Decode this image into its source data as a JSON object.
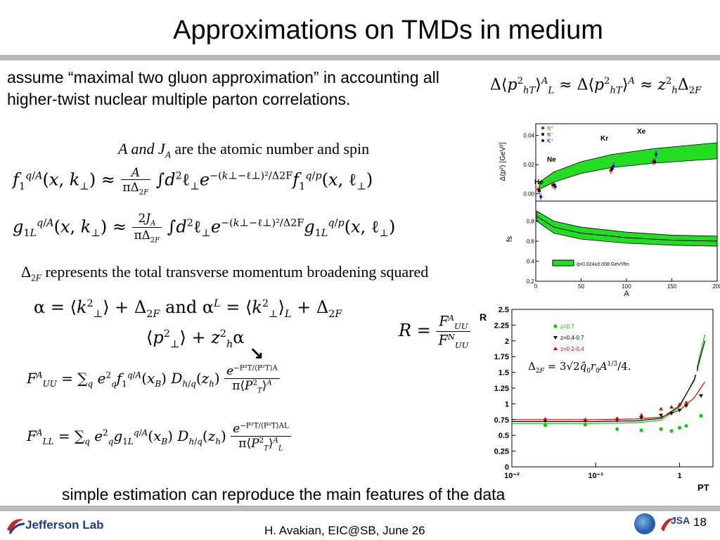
{
  "slide": {
    "title": "Approximations on TMDs in medium",
    "intro": "assume “maximal two gluon approximation” in accounting all higher-twist nuclear multiple parton correlations.",
    "atomic_note": "A and J",
    "atomic_note_sub": "A",
    "atomic_note_rest": " are the atomic number and spin",
    "delta_note_rest": " represents the total transverse momentum broadening squared",
    "and_word": "and",
    "conclusion": "simple estimation  can reproduce the main features of the data",
    "footer": "H. Avakian, EIC@SB,  June 26",
    "page_number": "18",
    "logo_text": "Jefferson Lab",
    "jsa_text": "JSA"
  },
  "equations": {
    "top_right": "Δ⟨p²hT⟩AL ≈ Δ⟨p²hT⟩A ≈ z²h Δ2F",
    "ratio": "R = FAUU / FNUU",
    "delta_formula": "Δ2F = 3√2 q̂0 r0 A1/3/4."
  },
  "chart_data": [
    {
      "type": "scatter",
      "title": "",
      "xlabel": "A",
      "ylabel": "Δ⟨p²⟩ [GeV²]",
      "xlim": [
        0,
        200
      ],
      "ylim": [
        -0.005,
        0.048
      ],
      "yticks": [
        "0.00",
        "0.02",
        "0.04"
      ],
      "xticks": [
        "0",
        "50",
        "100",
        "150",
        "200"
      ],
      "legend": [
        "π⁺",
        "π⁻",
        "K⁺"
      ],
      "legend_colors": [
        "#e00000",
        "#000000",
        "#0000ee"
      ],
      "annotations": [
        "He",
        "Ne",
        "Kr",
        "Xe"
      ],
      "band": {
        "x": [
          4,
          20,
          50,
          84,
          131,
          200
        ],
        "lo": [
          0.003,
          0.008,
          0.014,
          0.018,
          0.021,
          0.024
        ],
        "hi": [
          0.008,
          0.015,
          0.022,
          0.027,
          0.031,
          0.035
        ]
      },
      "series": [
        {
          "name": "π⁺",
          "x": [
            4,
            20,
            84,
            131
          ],
          "y": [
            0.003,
            0.006,
            0.016,
            0.022
          ],
          "color": "#e00000"
        },
        {
          "name": "π⁻",
          "x": [
            4,
            20,
            84,
            131
          ],
          "y": [
            0.002,
            0.006,
            0.017,
            0.022
          ],
          "color": "#000000"
        },
        {
          "name": "K⁺",
          "x": [
            4,
            20,
            84,
            131
          ],
          "y": [
            -0.002,
            0.005,
            0.019,
            0.027
          ],
          "color": "#0000ee"
        }
      ]
    },
    {
      "type": "area",
      "title": "",
      "xlabel": "A",
      "ylabel": "fs",
      "xlim": [
        0,
        200
      ],
      "ylim": [
        0.2,
        1.0
      ],
      "yticks": [
        "0.2",
        "0.4",
        "0.6",
        "0.8"
      ],
      "xticks": [
        "0",
        "50",
        "100",
        "150",
        "200"
      ],
      "legend": [
        "q̂=0.024±0.008 GeV²/fm"
      ],
      "band": {
        "x": [
          1,
          20,
          50,
          100,
          150,
          200
        ],
        "lo": [
          0.8,
          0.68,
          0.62,
          0.58,
          0.56,
          0.55
        ],
        "hi": [
          0.9,
          0.8,
          0.74,
          0.69,
          0.66,
          0.65
        ]
      },
      "center": {
        "x": [
          1,
          20,
          50,
          100,
          150,
          200
        ],
        "y": [
          0.85,
          0.74,
          0.68,
          0.635,
          0.61,
          0.6
        ]
      }
    },
    {
      "type": "scatter",
      "title": "",
      "xlabel": "PT",
      "ylabel": "R",
      "xscale": "log",
      "xlim": [
        0.01,
        2.5
      ],
      "ylim": [
        0,
        2.5
      ],
      "yticks": [
        "0",
        "0.25",
        "0.5",
        "0.75",
        "1",
        "1.25",
        "1.5",
        "1.75",
        "2",
        "2.25",
        "2.5"
      ],
      "xticks": [
        "10⁻²",
        "10⁻¹",
        "1"
      ],
      "legend": [
        "z<0.7",
        "z=0.4-0.7",
        "z=0.2-0.4"
      ],
      "series": [
        {
          "name": "z<0.7",
          "color": "#00cc00",
          "x": [
            0.025,
            0.075,
            0.18,
            0.35,
            0.6,
            0.8,
            1.0,
            1.2,
            1.8
          ],
          "y": [
            0.66,
            0.67,
            0.6,
            0.58,
            0.6,
            0.57,
            0.62,
            0.65,
            0.81
          ]
        },
        {
          "name": "z=0.4-0.7",
          "color": "#000000",
          "x": [
            0.025,
            0.075,
            0.18,
            0.35,
            0.6,
            0.8,
            1.0,
            1.2,
            1.8
          ],
          "y": [
            0.73,
            0.73,
            0.74,
            0.78,
            0.82,
            0.85,
            0.9,
            0.97,
            1.13
          ]
        },
        {
          "name": "z=0.2-0.4",
          "color": "#e00000",
          "x": [
            0.025,
            0.075,
            0.18,
            0.35,
            0.6,
            0.8,
            1.0,
            1.2,
            1.6
          ],
          "y": [
            0.76,
            0.75,
            0.77,
            0.82,
            0.92,
            0.95,
            0.99,
            1.02,
            1.56
          ]
        }
      ],
      "curves": [
        {
          "name": "z<0.7",
          "color": "#00cc00",
          "x": [
            0.01,
            0.1,
            0.3,
            0.6,
            1.0,
            1.5,
            2.0
          ],
          "y": [
            0.69,
            0.69,
            0.7,
            0.74,
            0.95,
            1.4,
            2.1
          ]
        },
        {
          "name": "z=0.4-0.7",
          "color": "#000000",
          "x": [
            0.01,
            0.1,
            0.3,
            0.6,
            1.0,
            1.5,
            2.0
          ],
          "y": [
            0.72,
            0.72,
            0.73,
            0.77,
            0.97,
            1.38,
            2.0
          ]
        },
        {
          "name": "z=0.2-0.4",
          "color": "#e00000",
          "x": [
            0.01,
            0.1,
            0.3,
            0.6,
            1.0,
            1.5,
            2.0
          ],
          "y": [
            0.75,
            0.75,
            0.76,
            0.79,
            0.9,
            1.1,
            1.35
          ]
        }
      ]
    }
  ]
}
